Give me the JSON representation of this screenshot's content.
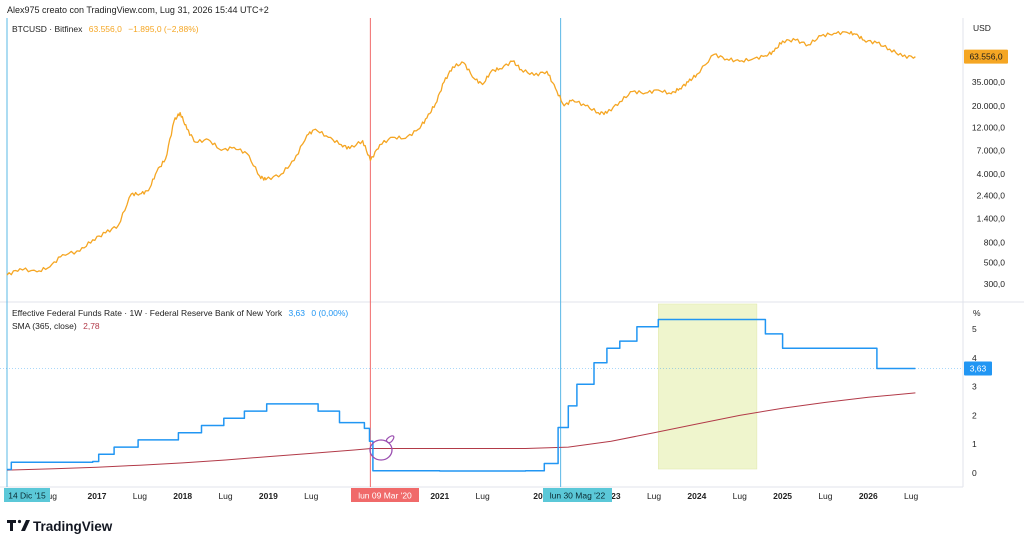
{
  "header": {
    "credit": "Alex975 creato con TradingView.com, Lug 31, 2026 15:44 UTC+2"
  },
  "upper": {
    "symbol": "BTCUSD · Bitfinex",
    "price": "63.556,0",
    "change": "−1.895,0 (−2,88%)",
    "currency": "USD"
  },
  "lower": {
    "fed_title": "Effective Federal Funds Rate · 1W · Federal Reserve Bank of New York",
    "fed_value": "3,63",
    "fed_change": "0 (0,00%)",
    "sma_title": "SMA (365, close)",
    "sma_value": "2,78",
    "unit": "%"
  },
  "markers": {
    "left": "14 Dic '15",
    "mid": "lun 09 Mar '20",
    "right": "lun 30 Mag '22"
  },
  "logo": "TradingView",
  "colors": {
    "btc": "#f5a623",
    "fed": "#2196f3",
    "sma": "#b23a48",
    "vline_red": "#f06a6a",
    "vline_blue": "#5ab8e6",
    "marker_cyan": "#5bc8d8",
    "marker_red": "#f06a6a",
    "shade": "#eef5c8",
    "circle": "#9b4fb0"
  },
  "chart_data": [
    {
      "type": "line",
      "title": "BTCUSD · Bitfinex",
      "yscale": "log",
      "ylabel": "USD",
      "yticks": [
        300,
        500,
        800,
        1400,
        2400,
        4000,
        7000,
        12000,
        20000,
        35000
      ],
      "ytick_labels": [
        "300,0",
        "500,0",
        "800,0",
        "1.400,0",
        "2.400,0",
        "4.000,0",
        "7.000,0",
        "12.000,0",
        "20.000,0",
        "35.000,0"
      ],
      "last_value": 63556,
      "series": [
        {
          "name": "BTCUSD",
          "x": [
            2015.95,
            2016.1,
            2016.3,
            2016.45,
            2016.6,
            2016.8,
            2016.95,
            2017.1,
            2017.25,
            2017.4,
            2017.5,
            2017.6,
            2017.7,
            2017.8,
            2017.9,
            2017.97,
            2018.05,
            2018.15,
            2018.3,
            2018.45,
            2018.6,
            2018.75,
            2018.9,
            2018.97,
            2019.15,
            2019.3,
            2019.45,
            2019.55,
            2019.7,
            2019.85,
            2019.95,
            2020.1,
            2020.19,
            2020.3,
            2020.45,
            2020.6,
            2020.75,
            2020.85,
            2020.95,
            2021.05,
            2021.15,
            2021.28,
            2021.4,
            2021.5,
            2021.6,
            2021.7,
            2021.85,
            2021.95,
            2022.1,
            2022.25,
            2022.35,
            2022.45,
            2022.55,
            2022.7,
            2022.85,
            2022.95,
            2023.1,
            2023.25,
            2023.4,
            2023.55,
            2023.7,
            2023.8,
            2023.9,
            2024.0,
            2024.2,
            2024.35,
            2024.5,
            2024.65,
            2024.8,
            2024.9,
            2025.0,
            2025.15,
            2025.3,
            2025.45,
            2025.6,
            2025.75,
            2025.85,
            2025.95,
            2026.1,
            2026.25,
            2026.4,
            2026.55
          ],
          "values": [
            370,
            430,
            400,
            450,
            600,
            650,
            850,
            1000,
            1200,
            2500,
            2500,
            2700,
            4300,
            5700,
            14000,
            17000,
            11500,
            8500,
            9000,
            7000,
            7500,
            6500,
            3800,
            3500,
            4000,
            5500,
            10000,
            11500,
            9500,
            8000,
            7300,
            8800,
            5500,
            8000,
            9500,
            9300,
            11500,
            15000,
            21000,
            35000,
            50000,
            55000,
            38000,
            33000,
            45000,
            48000,
            57000,
            47000,
            41000,
            45000,
            30000,
            20000,
            23000,
            20000,
            17000,
            16800,
            22000,
            28000,
            27000,
            29000,
            26500,
            30000,
            35000,
            42000,
            67000,
            60000,
            57000,
            60000,
            65000,
            72000,
            92000,
            94000,
            84000,
            104000,
            110000,
            113000,
            108000,
            94000,
            88000,
            76000,
            64000,
            63556
          ]
        }
      ]
    },
    {
      "type": "line",
      "title": "Effective Federal Funds Rate · 1W · Federal Reserve Bank of New York",
      "ylabel": "%",
      "yticks": [
        0,
        1,
        2,
        3,
        4,
        5
      ],
      "ylim": [
        -0.4,
        5.8
      ],
      "xticks": [
        "Lug",
        "2017",
        "Lug",
        "2018",
        "Lug",
        "2019",
        "Lug",
        "2021",
        "Lug",
        "2023",
        "Lug",
        "2024",
        "Lug",
        "2025",
        "Lug",
        "2026",
        "Lug"
      ],
      "series": [
        {
          "name": "Effective Federal Funds Rate",
          "x": [
            2015.95,
            2016.0,
            2016.95,
            2017.02,
            2017.2,
            2017.48,
            2017.95,
            2018.22,
            2018.48,
            2018.72,
            2018.98,
            2019.58,
            2019.83,
            2020.12,
            2020.18,
            2020.22,
            2021.0,
            2022.0,
            2022.22,
            2022.38,
            2022.5,
            2022.6,
            2022.8,
            2022.95,
            2023.1,
            2023.3,
            2023.55,
            2024.7,
            2024.8,
            2025.0,
            2025.85,
            2026.1,
            2026.55
          ],
          "values": [
            0.12,
            0.37,
            0.4,
            0.65,
            0.9,
            1.15,
            1.4,
            1.65,
            1.9,
            2.15,
            2.4,
            2.15,
            1.75,
            1.55,
            1.1,
            0.08,
            0.07,
            0.08,
            0.33,
            1.58,
            2.33,
            3.08,
            3.83,
            4.33,
            4.58,
            5.08,
            5.33,
            5.33,
            4.83,
            4.33,
            4.33,
            3.63,
            3.63
          ],
          "last_value": 3.63
        },
        {
          "name": "SMA (365, close)",
          "x": [
            2015.95,
            2016.5,
            2017.0,
            2017.5,
            2018.0,
            2018.5,
            2019.0,
            2019.5,
            2020.0,
            2020.2,
            2021.0,
            2022.0,
            2022.5,
            2023.0,
            2023.5,
            2024.0,
            2024.5,
            2025.0,
            2025.5,
            2026.0,
            2026.55
          ],
          "values": [
            0.1,
            0.15,
            0.2,
            0.27,
            0.35,
            0.45,
            0.57,
            0.68,
            0.8,
            0.85,
            0.85,
            0.85,
            0.9,
            1.1,
            1.4,
            1.7,
            2.0,
            2.25,
            2.45,
            2.63,
            2.78
          ],
          "last_value": 2.78
        }
      ],
      "shaded_region": {
        "x": [
          2023.55,
          2024.7
        ]
      },
      "vertical_markers": [
        {
          "x": 2015.95,
          "label": "14 Dic '15"
        },
        {
          "x": 2020.19,
          "label": "lun 09 Mar '20"
        },
        {
          "x": 2022.41,
          "label": "lun 30 Mag '22"
        }
      ]
    }
  ]
}
